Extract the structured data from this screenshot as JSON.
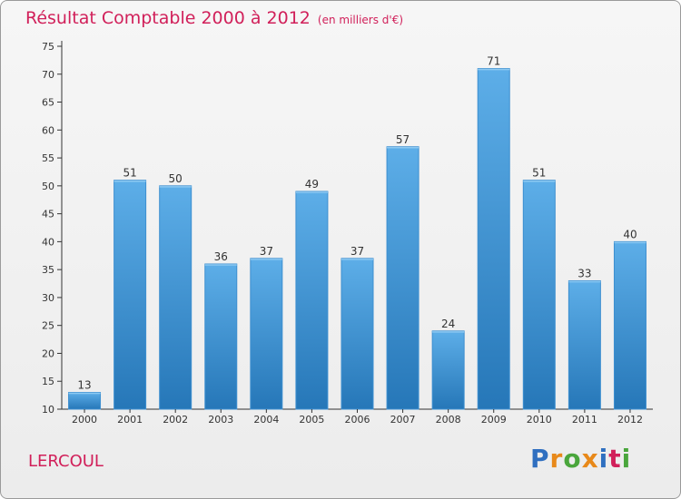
{
  "title": "Résultat Comptable 2000 à 2012",
  "subtitle": "(en milliers d'€)",
  "commune": "LERCOUL",
  "logo": {
    "text": "Proxiti",
    "colors": [
      "#2f6fc0",
      "#e8891a",
      "#4aa63c",
      "#e8891a",
      "#2f6fc0",
      "#d1205a",
      "#4aa63c"
    ]
  },
  "colors": {
    "bar_top": "#5daee8",
    "bar_bottom": "#2677b8",
    "title": "#d1205a"
  },
  "chart_data": {
    "type": "bar",
    "categories": [
      "2000",
      "2001",
      "2002",
      "2003",
      "2004",
      "2005",
      "2006",
      "2007",
      "2008",
      "2009",
      "2010",
      "2011",
      "2012"
    ],
    "values": [
      13,
      51,
      50,
      36,
      37,
      49,
      37,
      57,
      24,
      71,
      51,
      33,
      40
    ],
    "title": "Résultat Comptable 2000 à 2012",
    "subtitle": "(en milliers d'€)",
    "xlabel": "",
    "ylabel": "",
    "ylim": [
      10,
      75
    ],
    "yticks": [
      10,
      15,
      20,
      25,
      30,
      35,
      40,
      45,
      50,
      55,
      60,
      65,
      70,
      75
    ],
    "grid": false
  }
}
